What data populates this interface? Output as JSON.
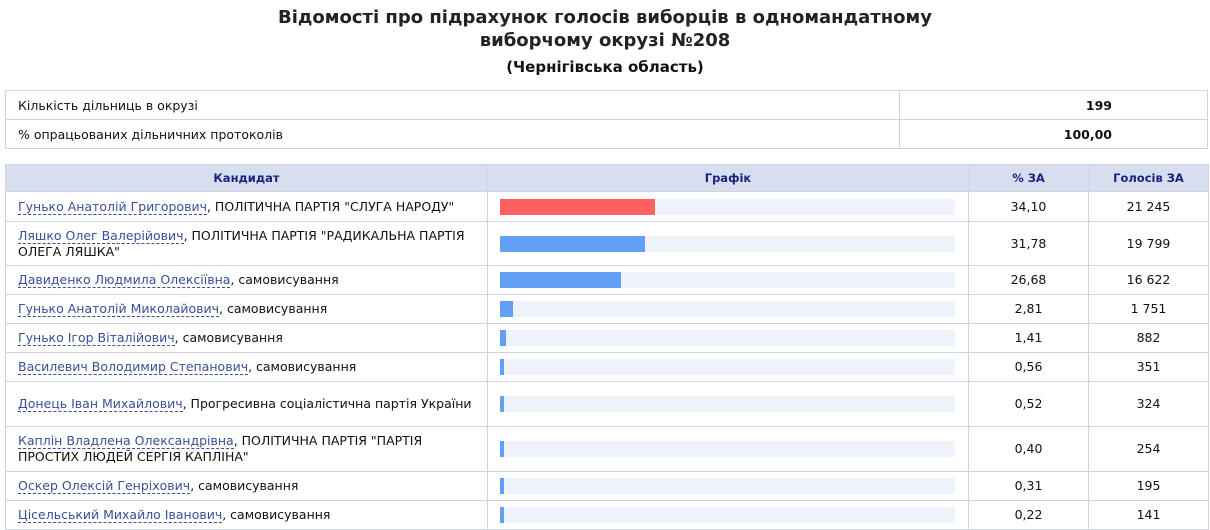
{
  "title": "Відомості про підрахунок голосів виборців в одномандатному виборчому окрузі №208",
  "title_line1": "Відомості про підрахунок голосів виборців в одномандатному",
  "title_line2": "виборчому окрузі №208",
  "subtitle": "(Чернігівська область)",
  "info": [
    {
      "label": "Кількість дільниць в окрузі",
      "value": "199"
    },
    {
      "label": "% опрацьованих дільничних протоколів",
      "value": "100,00"
    }
  ],
  "headers": {
    "candidate": "Кандидат",
    "chart": "Графік",
    "pct": "% ЗА",
    "votes": "Голосів ЗА"
  },
  "colors": {
    "leader": "#ff6161",
    "other": "#61a0f5",
    "track": "#eef2fb"
  },
  "rows": [
    {
      "name": "Гунько Анатолій Григорович",
      "party": ", ПОЛІТИЧНА ПАРТІЯ \"СЛУГА НАРОДУ\"",
      "pct": "34,10",
      "votes": "21 245",
      "pct_value": 34.1
    },
    {
      "name": "Ляшко Олег Валерійович",
      "party": ", ПОЛІТИЧНА ПАРТІЯ \"РАДИКАЛЬНА ПАРТІЯ ОЛЕГА ЛЯШКА\"",
      "pct": "31,78",
      "votes": "19 799",
      "pct_value": 31.78
    },
    {
      "name": "Давиденко Людмила Олексіївна",
      "party": ", самовисування",
      "pct": "26,68",
      "votes": "16 622",
      "pct_value": 26.68
    },
    {
      "name": "Гунько Анатолій Миколайович",
      "party": ", самовисування",
      "pct": "2,81",
      "votes": "1 751",
      "pct_value": 2.81
    },
    {
      "name": "Гунько Ігор Віталійович",
      "party": ", самовисування",
      "pct": "1,41",
      "votes": "882",
      "pct_value": 1.41
    },
    {
      "name": "Василевич Володимир Степанович",
      "party": ", самовисування",
      "pct": "0,56",
      "votes": "351",
      "pct_value": 0.56
    },
    {
      "name": "Донець Іван Михайлович",
      "party": ", Прогресивна соціалістична партія України",
      "pct": "0,52",
      "votes": "324",
      "pct_value": 0.52
    },
    {
      "name": "Каплін Владлена Олександрівна",
      "party": ", ПОЛІТИЧНА ПАРТІЯ \"ПАРТІЯ ПРОСТИХ ЛЮДЕЙ СЕРГІЯ КАПЛІНА\"",
      "pct": "0,40",
      "votes": "254",
      "pct_value": 0.4
    },
    {
      "name": "Оскер Олексій Генріхович",
      "party": ", самовисування",
      "pct": "0,31",
      "votes": "195",
      "pct_value": 0.31
    },
    {
      "name": "Цісельський Михайло Іванович",
      "party": ", самовисування",
      "pct": "0,22",
      "votes": "141",
      "pct_value": 0.22
    }
  ]
}
